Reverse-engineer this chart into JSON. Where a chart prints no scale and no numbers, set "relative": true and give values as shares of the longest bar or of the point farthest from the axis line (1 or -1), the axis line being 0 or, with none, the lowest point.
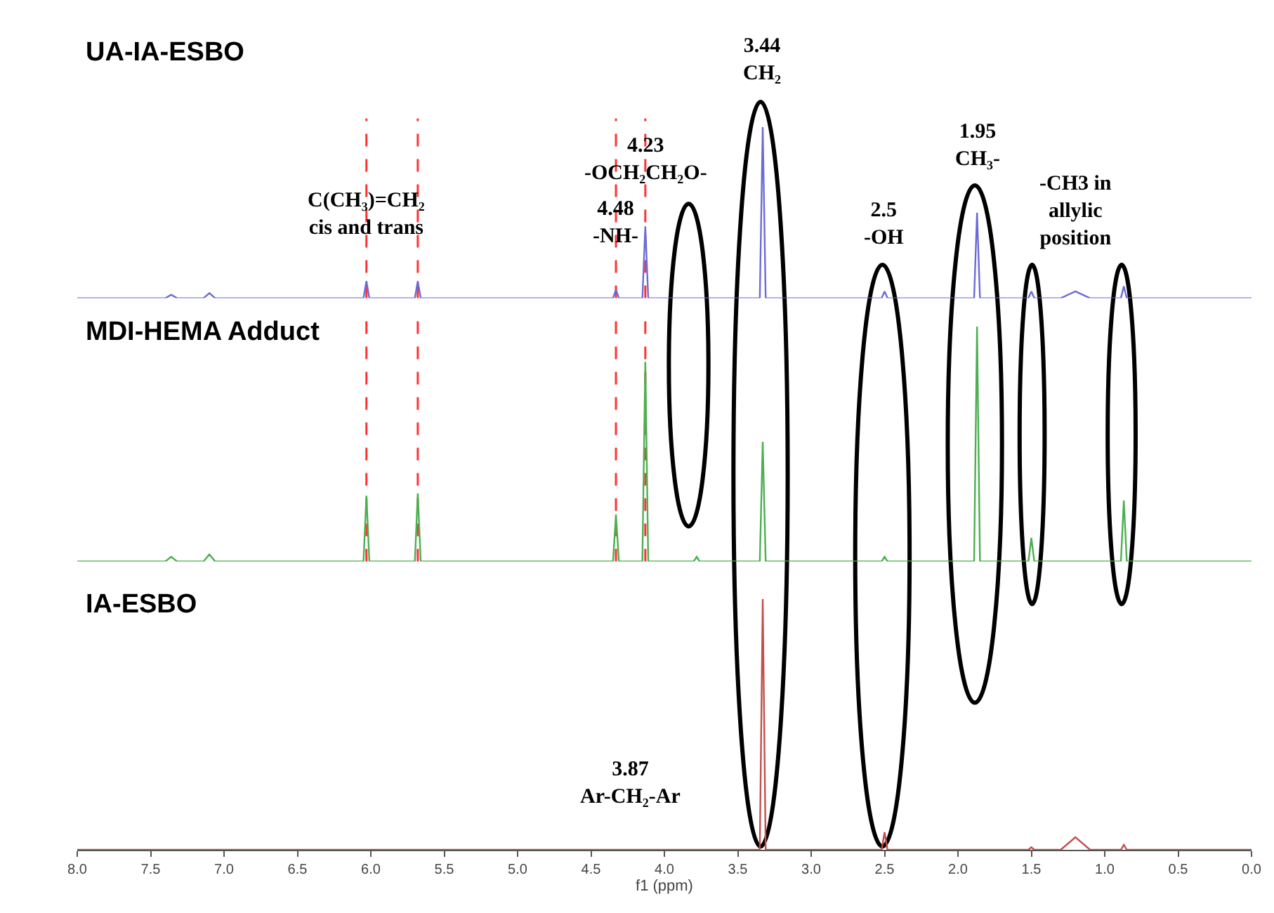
{
  "chart_data": [
    {
      "type": "line",
      "title": "UA-IA-ESBO",
      "relative": true,
      "xlim": [
        8.0,
        0.0
      ],
      "tick_labels": false,
      "x": [
        8.0,
        7.4,
        7.36,
        7.32,
        7.14,
        7.1,
        7.06,
        6.05,
        6.03,
        6.01,
        5.7,
        5.68,
        5.66,
        4.35,
        4.33,
        4.31,
        4.15,
        4.13,
        4.11,
        3.8,
        3.78,
        3.76,
        3.35,
        3.33,
        3.31,
        2.52,
        2.5,
        2.48,
        1.89,
        1.87,
        1.85,
        1.52,
        1.5,
        1.48,
        1.3,
        1.2,
        1.1,
        0.89,
        0.87,
        0.85,
        0.0
      ],
      "series": [
        {
          "color": "#6b6bd6",
          "values": [
            0,
            0,
            0.02,
            0,
            0,
            0.03,
            0,
            0,
            0.1,
            0,
            0,
            0.1,
            0,
            0,
            0.05,
            0,
            0,
            0.42,
            0,
            0,
            0,
            0,
            0,
            1,
            0,
            0,
            0.04,
            0,
            0,
            0.5,
            0,
            0,
            0.04,
            0,
            0,
            0.04,
            0,
            0,
            0.07,
            0,
            0
          ]
        }
      ],
      "ref_lines": [
        {
          "axis": "x",
          "value": 6.03,
          "color": "#ff3333",
          "line_style": "dashed"
        },
        {
          "axis": "x",
          "value": 5.68,
          "color": "#ff3333",
          "line_style": "dashed"
        },
        {
          "axis": "x",
          "value": 4.33,
          "color": "#ff3333",
          "line_style": "dashed"
        },
        {
          "axis": "x",
          "value": 4.13,
          "color": "#ff3333",
          "line_style": "dashed"
        }
      ],
      "annotations": [
        {
          "text": "C(CH₃)=CH₂\ncis and trans",
          "x": 6.03,
          "y": 0.1
        },
        {
          "text": "4.23\n-OCH₂CH₂O-",
          "x": 4.13,
          "y": 0.42
        },
        {
          "text": "4.48\n-NH-",
          "x": 4.33,
          "y": 0.05
        },
        {
          "text": "3.44\nCH₂",
          "x": 3.33,
          "y": 1
        },
        {
          "text": "2.5\n-OH",
          "x": 2.5,
          "y": 0.04
        },
        {
          "text": "1.95\nCH₃-",
          "x": 1.87,
          "y": 0.5
        },
        {
          "text": "-CH3 in\nallylic\nposition",
          "x": 1.2,
          "y": 0.04
        }
      ]
    },
    {
      "type": "line",
      "title": "MDI-HEMA Adduct",
      "relative": true,
      "xlim": [
        8.0,
        0.0
      ],
      "tick_labels": false,
      "x": [
        8.0,
        7.4,
        7.36,
        7.32,
        7.14,
        7.1,
        7.06,
        6.05,
        6.03,
        6.01,
        5.7,
        5.68,
        5.66,
        4.35,
        4.33,
        4.31,
        4.15,
        4.13,
        4.11,
        3.8,
        3.78,
        3.76,
        3.35,
        3.33,
        3.31,
        2.52,
        2.5,
        2.48,
        1.89,
        1.87,
        1.85,
        1.52,
        1.5,
        1.48,
        1.3,
        1.2,
        1.1,
        0.89,
        0.87,
        0.85,
        0.0
      ],
      "series": [
        {
          "color": "#4caf50",
          "values": [
            0,
            0,
            0.02,
            0,
            0,
            0.03,
            0,
            0,
            0.28,
            0,
            0,
            0.29,
            0,
            0,
            0.2,
            0,
            0,
            0.85,
            0,
            0,
            0.02,
            0,
            0,
            0.51,
            0,
            0,
            0.02,
            0,
            0,
            1,
            0,
            0,
            0.1,
            0,
            0,
            0,
            0,
            0,
            0.26,
            0,
            0
          ]
        }
      ],
      "ref_lines": [
        {
          "axis": "x",
          "value": 6.03,
          "color": "#ff3333",
          "line_style": "dashed"
        },
        {
          "axis": "x",
          "value": 5.68,
          "color": "#ff3333",
          "line_style": "dashed"
        },
        {
          "axis": "x",
          "value": 4.33,
          "color": "#ff3333",
          "line_style": "dashed"
        },
        {
          "axis": "x",
          "value": 4.13,
          "color": "#ff3333",
          "line_style": "dashed"
        }
      ]
    },
    {
      "type": "line",
      "title": "IA-ESBO",
      "relative": true,
      "xlim": [
        8.0,
        0.0
      ],
      "tick_labels": "x",
      "xlabel": "f1 (ppm)",
      "xticks": [
        {
          "value": 8,
          "label": "8.0"
        },
        7.5,
        {
          "value": 7,
          "label": "7.0"
        },
        6.5,
        {
          "value": 6,
          "label": "6.0"
        },
        5.5,
        {
          "value": 5,
          "label": "5.0"
        },
        4.5,
        {
          "value": 4,
          "label": "4.0"
        },
        3.5,
        {
          "value": 3,
          "label": "3.0"
        },
        2.5,
        {
          "value": 2,
          "label": "2.0"
        },
        1.5,
        {
          "value": 1,
          "label": "1.0"
        },
        0.5,
        {
          "value": 0,
          "label": "0.0"
        }
      ],
      "x": [
        8.0,
        7.4,
        7.36,
        7.32,
        7.14,
        7.1,
        7.06,
        6.05,
        6.03,
        6.01,
        5.7,
        5.68,
        5.66,
        4.35,
        4.33,
        4.31,
        4.15,
        4.13,
        4.11,
        3.8,
        3.78,
        3.76,
        3.35,
        3.33,
        3.31,
        2.52,
        2.5,
        2.48,
        1.89,
        1.87,
        1.85,
        1.52,
        1.5,
        1.48,
        1.3,
        1.2,
        1.1,
        0.89,
        0.87,
        0.85,
        0.0
      ],
      "series": [
        {
          "color": "#c0504d",
          "values": [
            0,
            0,
            0,
            0,
            0,
            0,
            0,
            0,
            0,
            0,
            0,
            0,
            0,
            0,
            0,
            0,
            0,
            0,
            0,
            0,
            0,
            0,
            0,
            1,
            0,
            0,
            0.07,
            0,
            0,
            0,
            0,
            0,
            0.01,
            0,
            0,
            0.05,
            0,
            0,
            0.02,
            0,
            0
          ]
        }
      ],
      "annotations": [
        {
          "text": "3.87\nAr-CH₂-Ar",
          "x": 3.87,
          "y": 0
        }
      ]
    }
  ]
}
